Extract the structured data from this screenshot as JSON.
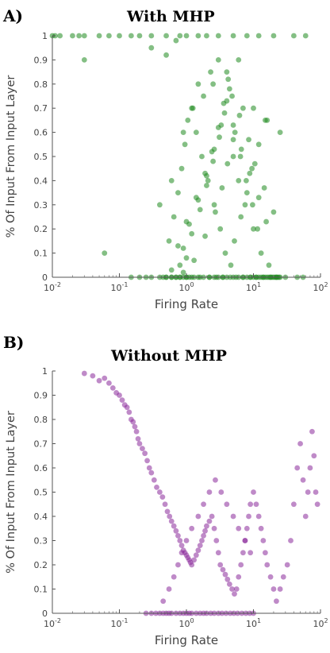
{
  "panels": [
    {
      "letter": "A)",
      "title": "With MHP",
      "xlabel": "Firing Rate",
      "ylabel": "% Of Input From Input Layer",
      "color": "#1f8a1f"
    },
    {
      "letter": "B)",
      "title": "Without MHP",
      "xlabel": "Firing Rate",
      "ylabel": "% Of Input From Input Layer",
      "color": "#8a2a9a"
    }
  ],
  "chart_data": [
    {
      "type": "scatter",
      "title": "With MHP",
      "xlabel": "Firing Rate",
      "ylabel": "% Of Input From Input Layer",
      "xscale": "log",
      "xlim": [
        0.01,
        100
      ],
      "ylim": [
        0,
        1
      ],
      "xticks": [
        "10^-2",
        "10^-1",
        "10^0",
        "10^1",
        "10^2"
      ],
      "yticks": [
        "0",
        "0.1",
        "0.2",
        "0.3",
        "0.4",
        "0.5",
        "0.6",
        "0.7",
        "0.8",
        "0.9",
        "1"
      ],
      "grid": false,
      "color": "#1f8a1f",
      "series": [
        {
          "x": [
            0.01,
            0.011,
            0.013,
            0.02,
            0.025,
            0.03,
            0.05,
            0.07,
            0.1,
            0.15,
            0.2,
            0.3,
            0.5,
            0.8,
            1.0,
            1.5,
            2.0,
            3.0,
            5.0,
            8.0,
            12.0,
            20.0,
            40.0,
            60.0,
            0.03,
            0.3,
            0.5,
            0.7,
            0.06,
            0.4,
            0.6,
            0.9,
            1.2,
            1.8,
            2.5,
            4.0,
            6.0,
            10.0,
            15.0,
            25.0,
            0.15,
            0.25,
            0.45,
            0.5,
            0.6,
            0.7,
            0.8,
            1.0,
            1.1,
            1.3,
            1.6,
            2.2,
            2.8,
            3.5,
            4.5,
            5.5,
            7.0,
            9.0,
            11.0,
            14.0,
            18.0,
            22.0,
            30.0,
            45.0,
            55.0,
            0.55,
            0.65,
            0.75,
            0.85,
            0.95,
            1.05,
            1.25,
            1.4,
            1.7,
            2.1,
            2.6,
            3.2,
            3.8,
            4.6,
            5.2,
            6.5,
            8.0,
            9.5,
            12.0,
            16.0,
            0.8,
            0.9,
            1.1,
            1.5,
            2.0,
            2.4,
            3.0,
            3.6,
            4.2,
            5.0,
            6.0,
            7.5,
            10.0,
            13.0,
            17.0,
            1.0,
            1.2,
            1.6,
            2.0,
            2.5,
            3.1,
            3.7,
            4.4,
            5.3,
            6.4,
            7.8,
            9.7,
            11.5,
            0.9,
            1.3,
            1.9,
            2.7,
            3.4,
            4.1,
            5.0,
            6.2,
            8.5,
            10.5,
            14.5,
            20.0,
            0.6,
            0.75,
            1.0,
            1.4,
            1.9,
            2.6,
            3.3,
            4.0,
            5.0,
            6.6,
            8.8,
            12.0,
            15.5,
            1.5,
            2.3,
            3.0,
            4.8,
            7.0,
            0.2,
            0.3,
            0.4,
            0.5,
            0.6,
            0.7,
            0.8,
            0.9,
            1.0,
            1.2,
            1.5,
            1.8,
            2.2,
            2.6,
            3.0,
            3.5,
            4.0,
            5.0,
            6.0,
            7.0,
            8.0,
            9.0,
            10.0,
            11.0,
            12.0,
            13.0,
            14.0,
            15.0,
            16.0,
            17.0,
            18.0,
            19.0,
            20.0,
            21.0,
            22.0,
            23.0,
            24.0,
            25.0
          ],
          "y": [
            1.0,
            1.0,
            1.0,
            1.0,
            1.0,
            1.0,
            1.0,
            1.0,
            1.0,
            1.0,
            1.0,
            1.0,
            1.0,
            1.0,
            1.0,
            1.0,
            1.0,
            1.0,
            1.0,
            1.0,
            1.0,
            1.0,
            1.0,
            1.0,
            0.9,
            0.95,
            0.92,
            0.98,
            0.1,
            0.3,
            0.4,
            0.6,
            0.7,
            0.75,
            0.8,
            0.85,
            0.9,
            0.7,
            0.65,
            0.6,
            0.0,
            0.0,
            0.0,
            0.0,
            0.0,
            0.0,
            0.0,
            0.0,
            0.0,
            0.0,
            0.0,
            0.0,
            0.0,
            0.0,
            0.0,
            0.0,
            0.0,
            0.0,
            0.0,
            0.0,
            0.0,
            0.0,
            0.0,
            0.0,
            0.0,
            0.15,
            0.25,
            0.35,
            0.45,
            0.55,
            0.65,
            0.7,
            0.6,
            0.5,
            0.4,
            0.3,
            0.2,
            0.1,
            0.05,
            0.15,
            0.25,
            0.35,
            0.45,
            0.55,
            0.65,
            0.05,
            0.12,
            0.22,
            0.32,
            0.42,
            0.52,
            0.62,
            0.72,
            0.82,
            0.5,
            0.4,
            0.3,
            0.2,
            0.1,
            0.05,
            0.08,
            0.18,
            0.28,
            0.38,
            0.48,
            0.58,
            0.68,
            0.78,
            0.6,
            0.5,
            0.4,
            0.3,
            0.2,
            0.02,
            0.07,
            0.17,
            0.27,
            0.37,
            0.47,
            0.57,
            0.67,
            0.57,
            0.47,
            0.37,
            0.27,
            0.03,
            0.13,
            0.23,
            0.33,
            0.43,
            0.53,
            0.63,
            0.73,
            0.63,
            0.53,
            0.43,
            0.33,
            0.23,
            0.8,
            0.85,
            0.9,
            0.75,
            0.7,
            0.0,
            0.0,
            0.0,
            0.0,
            0.0,
            0.0,
            0.0,
            0.0,
            0.0,
            0.0,
            0.0,
            0.0,
            0.0,
            0.0,
            0.0,
            0.0,
            0.0,
            0.0,
            0.0,
            0.0,
            0.0,
            0.0,
            0.0,
            0.0,
            0.0,
            0.0,
            0.0,
            0.0,
            0.0,
            0.0,
            0.0,
            0.0,
            0.0,
            0.0,
            0.0,
            0.0,
            0.0,
            0.0
          ]
        }
      ]
    },
    {
      "type": "scatter",
      "title": "Without MHP",
      "xlabel": "Firing Rate",
      "ylabel": "% Of Input From Input Layer",
      "xscale": "log",
      "xlim": [
        0.01,
        100
      ],
      "ylim": [
        0,
        1
      ],
      "xticks": [
        "10^-2",
        "10^-1",
        "10^0",
        "10^1",
        "10^2"
      ],
      "yticks": [
        "0",
        "0.1",
        "0.2",
        "0.3",
        "0.4",
        "0.5",
        "0.6",
        "0.7",
        "0.8",
        "0.9",
        "1"
      ],
      "grid": false,
      "color": "#8a2a9a",
      "series": [
        {
          "x": [
            0.03,
            0.04,
            0.05,
            0.06,
            0.07,
            0.08,
            0.09,
            0.1,
            0.11,
            0.12,
            0.13,
            0.14,
            0.15,
            0.16,
            0.17,
            0.18,
            0.19,
            0.2,
            0.22,
            0.24,
            0.26,
            0.28,
            0.3,
            0.33,
            0.36,
            0.4,
            0.44,
            0.48,
            0.52,
            0.56,
            0.6,
            0.65,
            0.7,
            0.75,
            0.8,
            0.85,
            0.9,
            0.95,
            1.0,
            1.05,
            1.1,
            1.15,
            1.2,
            1.3,
            1.4,
            1.5,
            1.6,
            1.7,
            1.8,
            1.9,
            2.0,
            2.2,
            2.4,
            2.6,
            2.8,
            3.0,
            3.2,
            3.5,
            3.8,
            4.1,
            4.4,
            4.8,
            5.2,
            5.6,
            6.0,
            6.5,
            7.0,
            7.5,
            8.0,
            8.5,
            9.0,
            10.0,
            11.0,
            12.0,
            13.0,
            14.0,
            15.0,
            16.0,
            18.0,
            20.0,
            22.0,
            25.0,
            28.0,
            32.0,
            36.0,
            40.0,
            45.0,
            50.0,
            55.0,
            60.0,
            65.0,
            70.0,
            75.0,
            80.0,
            85.0,
            90.0,
            0.25,
            0.3,
            0.35,
            0.4,
            0.45,
            0.5,
            0.55,
            0.6,
            0.7,
            0.8,
            0.9,
            1.0,
            1.1,
            1.2,
            1.4,
            1.6,
            1.8,
            2.0,
            2.3,
            2.6,
            3.0,
            3.4,
            3.9,
            4.5,
            5.1,
            5.8,
            6.7,
            7.7,
            8.8,
            10.0,
            0.45,
            0.55,
            0.65,
            0.75,
            0.85,
            1.0,
            1.2,
            1.5,
            1.8,
            2.2,
            2.7,
            3.3,
            4.0,
            5.0,
            6.0,
            7.5,
            9.0
          ],
          "y": [
            0.99,
            0.98,
            0.96,
            0.97,
            0.95,
            0.93,
            0.91,
            0.9,
            0.88,
            0.86,
            0.85,
            0.83,
            0.8,
            0.79,
            0.77,
            0.75,
            0.72,
            0.7,
            0.68,
            0.66,
            0.63,
            0.6,
            0.58,
            0.55,
            0.52,
            0.5,
            0.48,
            0.45,
            0.42,
            0.4,
            0.38,
            0.36,
            0.34,
            0.32,
            0.3,
            0.28,
            0.26,
            0.25,
            0.24,
            0.23,
            0.22,
            0.21,
            0.2,
            0.22,
            0.24,
            0.26,
            0.28,
            0.3,
            0.32,
            0.34,
            0.36,
            0.38,
            0.4,
            0.35,
            0.3,
            0.25,
            0.2,
            0.18,
            0.16,
            0.14,
            0.12,
            0.1,
            0.08,
            0.1,
            0.15,
            0.2,
            0.25,
            0.3,
            0.35,
            0.4,
            0.45,
            0.5,
            0.45,
            0.4,
            0.35,
            0.3,
            0.25,
            0.2,
            0.15,
            0.1,
            0.05,
            0.1,
            0.15,
            0.2,
            0.3,
            0.45,
            0.6,
            0.7,
            0.55,
            0.4,
            0.5,
            0.6,
            0.75,
            0.65,
            0.5,
            0.45,
            0.0,
            0.0,
            0.0,
            0.0,
            0.0,
            0.0,
            0.0,
            0.0,
            0.0,
            0.0,
            0.0,
            0.0,
            0.0,
            0.0,
            0.0,
            0.0,
            0.0,
            0.0,
            0.0,
            0.0,
            0.0,
            0.0,
            0.0,
            0.0,
            0.0,
            0.0,
            0.0,
            0.0,
            0.0,
            0.0,
            0.05,
            0.1,
            0.15,
            0.2,
            0.25,
            0.3,
            0.35,
            0.4,
            0.45,
            0.5,
            0.55,
            0.5,
            0.45,
            0.4,
            0.35,
            0.3,
            0.25
          ]
        }
      ]
    }
  ]
}
